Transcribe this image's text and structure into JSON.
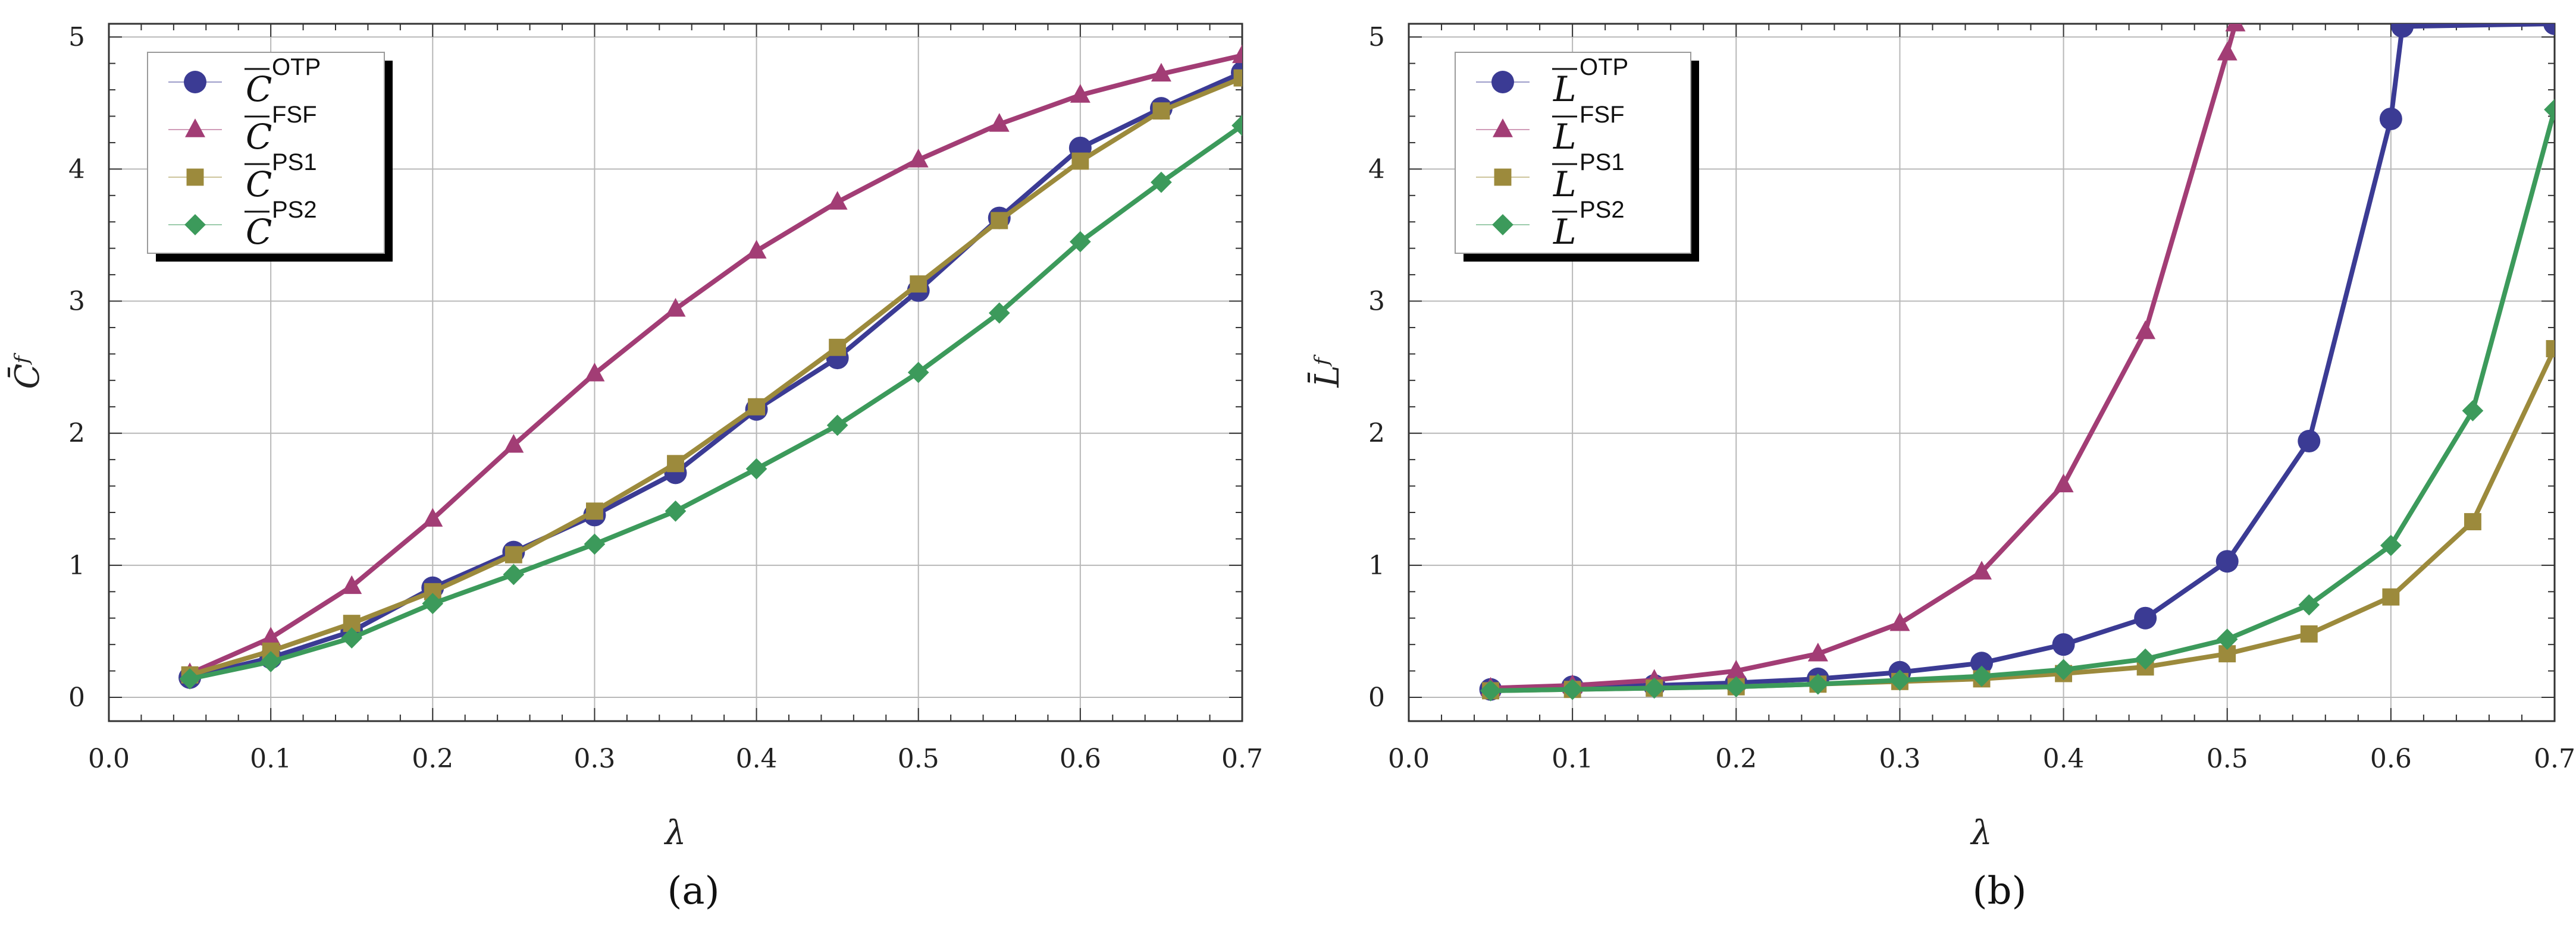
{
  "colors": {
    "otp": "#3b3b94",
    "fsf": "#a23d75",
    "ps1": "#9c8a3c",
    "ps2": "#3c9a5b",
    "grid": "#b8b8b8",
    "axis": "#333333"
  },
  "chart_data": [
    {
      "type": "line",
      "panel_label": "(a)",
      "xlabel": "λ",
      "ylabel": "C̄ᶠ",
      "xlim": [
        0.0,
        0.7
      ],
      "ylim": [
        -0.18,
        5.1
      ],
      "xticks": [
        "0.0",
        "0.1",
        "0.2",
        "0.3",
        "0.4",
        "0.5",
        "0.6",
        "0.7"
      ],
      "yticks": [
        "0",
        "1",
        "2",
        "3",
        "4",
        "5"
      ],
      "grid": true,
      "legend_position": "top-left",
      "x": [
        0.05,
        0.1,
        0.15,
        0.2,
        0.25,
        0.3,
        0.35,
        0.4,
        0.45,
        0.5,
        0.55,
        0.6,
        0.65,
        0.7
      ],
      "series": [
        {
          "name": "C",
          "sup": "OTP",
          "marker": "circle",
          "color_key": "otp",
          "values": [
            0.15,
            0.3,
            0.5,
            0.83,
            1.1,
            1.38,
            1.7,
            2.18,
            2.57,
            3.08,
            3.63,
            4.16,
            4.46,
            4.73
          ]
        },
        {
          "name": "C",
          "sup": "FSF",
          "marker": "triangle",
          "color_key": "fsf",
          "values": [
            0.18,
            0.45,
            0.84,
            1.35,
            1.91,
            2.45,
            2.94,
            3.38,
            3.75,
            4.07,
            4.34,
            4.56,
            4.72,
            4.86
          ]
        },
        {
          "name": "C",
          "sup": "PS1",
          "marker": "square",
          "color_key": "ps1",
          "values": [
            0.17,
            0.35,
            0.56,
            0.8,
            1.08,
            1.41,
            1.77,
            2.2,
            2.65,
            3.13,
            3.61,
            4.06,
            4.44,
            4.69
          ]
        },
        {
          "name": "C",
          "sup": "PS2",
          "marker": "diamond",
          "color_key": "ps2",
          "values": [
            0.14,
            0.27,
            0.45,
            0.71,
            0.93,
            1.16,
            1.41,
            1.73,
            2.06,
            2.46,
            2.91,
            3.45,
            3.9,
            4.33
          ]
        }
      ]
    },
    {
      "type": "line",
      "panel_label": "(b)",
      "xlabel": "λ",
      "ylabel": "L̄ᶠ",
      "xlim": [
        0.0,
        0.7
      ],
      "ylim": [
        -0.18,
        5.1
      ],
      "xticks": [
        "0.0",
        "0.1",
        "0.2",
        "0.3",
        "0.4",
        "0.5",
        "0.6",
        "0.7"
      ],
      "yticks": [
        "0",
        "1",
        "2",
        "3",
        "4",
        "5"
      ],
      "grid": true,
      "legend_position": "top-left",
      "series": [
        {
          "name": "L",
          "sup": "OTP",
          "marker": "circle",
          "color_key": "otp",
          "x": [
            0.05,
            0.1,
            0.15,
            0.2,
            0.25,
            0.3,
            0.35,
            0.4,
            0.45,
            0.5,
            0.55,
            0.6,
            0.607,
            0.7
          ],
          "values": [
            0.06,
            0.08,
            0.09,
            0.11,
            0.14,
            0.19,
            0.26,
            0.4,
            0.6,
            1.03,
            1.94,
            4.38,
            5.08,
            5.1
          ]
        },
        {
          "name": "L",
          "sup": "FSF",
          "marker": "triangle",
          "color_key": "fsf",
          "x": [
            0.05,
            0.1,
            0.15,
            0.2,
            0.25,
            0.3,
            0.35,
            0.4,
            0.45,
            0.5,
            0.505
          ],
          "values": [
            0.07,
            0.09,
            0.13,
            0.2,
            0.33,
            0.56,
            0.95,
            1.61,
            2.77,
            4.88,
            5.1
          ]
        },
        {
          "name": "L",
          "sup": "PS1",
          "marker": "square",
          "color_key": "ps1",
          "x": [
            0.05,
            0.1,
            0.15,
            0.2,
            0.25,
            0.3,
            0.35,
            0.4,
            0.45,
            0.5,
            0.55,
            0.6,
            0.65,
            0.7
          ],
          "values": [
            0.05,
            0.06,
            0.07,
            0.08,
            0.1,
            0.12,
            0.14,
            0.18,
            0.23,
            0.33,
            0.48,
            0.76,
            1.33,
            2.64
          ]
        },
        {
          "name": "L",
          "sup": "PS2",
          "marker": "diamond",
          "color_key": "ps2",
          "x": [
            0.05,
            0.1,
            0.15,
            0.2,
            0.25,
            0.3,
            0.35,
            0.4,
            0.45,
            0.5,
            0.55,
            0.6,
            0.65,
            0.7
          ],
          "values": [
            0.05,
            0.06,
            0.07,
            0.08,
            0.1,
            0.13,
            0.16,
            0.21,
            0.29,
            0.44,
            0.7,
            1.15,
            2.17,
            4.45
          ]
        }
      ]
    }
  ]
}
